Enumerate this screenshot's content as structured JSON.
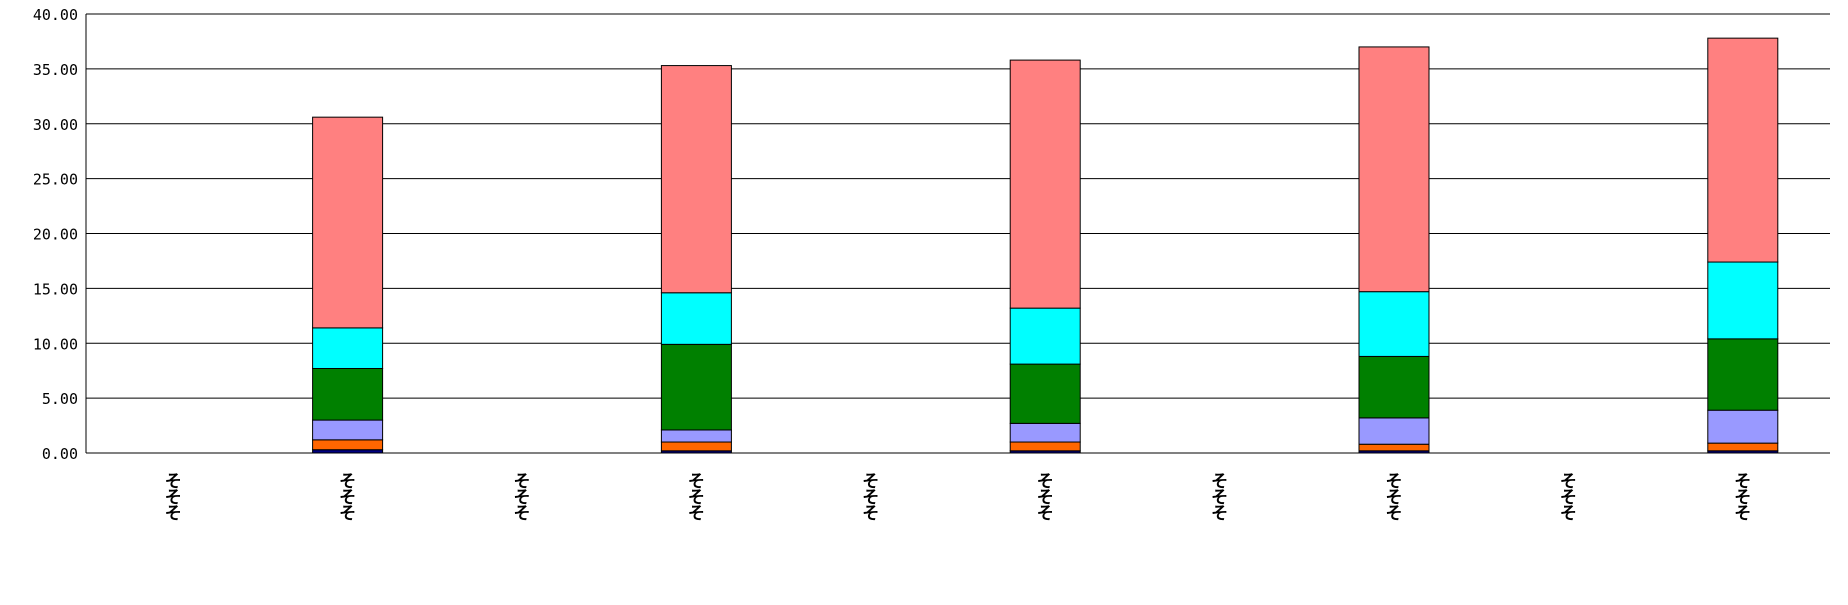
{
  "chart_data": {
    "type": "bar",
    "stacked": true,
    "categories": [
      "そそそ",
      "そそそ",
      "そそそ",
      "そそそ",
      "そそそ",
      "そそそ",
      "そそそ",
      "そそそ",
      "そそそ",
      "そそそ"
    ],
    "ylim": [
      0,
      40
    ],
    "yticks": [
      "0.00",
      "5.00",
      "10.00",
      "15.00",
      "20.00",
      "25.00",
      "30.00",
      "35.00",
      "40.00"
    ],
    "grid": true,
    "legend": "none",
    "colors": [
      "#000080",
      "#ff6600",
      "#9999ff",
      "#008000",
      "#00ffff",
      "#ff8080"
    ],
    "series": [
      {
        "values": [
          0,
          0.3,
          0,
          0.2,
          0,
          0.2,
          0,
          0.2,
          0,
          0.2
        ]
      },
      {
        "values": [
          0,
          0.9,
          0,
          0.8,
          0,
          0.8,
          0,
          0.6,
          0,
          0.7
        ]
      },
      {
        "values": [
          0,
          1.8,
          0,
          1.1,
          0,
          1.7,
          0,
          2.4,
          0,
          3.0
        ]
      },
      {
        "values": [
          0,
          4.7,
          0,
          7.8,
          0,
          5.4,
          0,
          5.6,
          0,
          6.5
        ]
      },
      {
        "values": [
          0,
          3.7,
          0,
          4.7,
          0,
          5.1,
          0,
          5.9,
          0,
          7.0
        ]
      },
      {
        "values": [
          0,
          19.2,
          0,
          20.7,
          0,
          22.6,
          0,
          22.3,
          0,
          20.4
        ]
      }
    ]
  }
}
